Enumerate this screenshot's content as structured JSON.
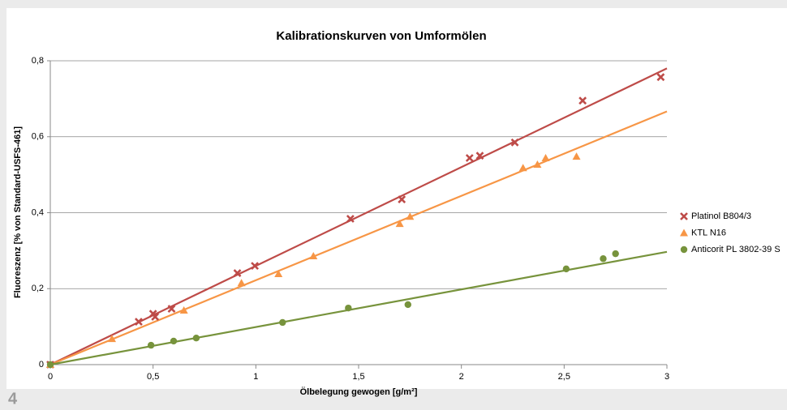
{
  "chart_data": {
    "type": "scatter",
    "title": "Kalibrationskurven von Umformölen",
    "xlabel": "Ölbelegung gewogen [g/m²]",
    "ylabel": "Fluoreszenz [% von Standard-USFS-461]",
    "xlim": [
      0,
      3
    ],
    "ylim": [
      0,
      0.8
    ],
    "xticks": [
      0,
      {
        "value": 0.5,
        "label": "0,5"
      },
      1,
      {
        "value": 1.5,
        "label": "1,5"
      },
      2,
      {
        "value": 2.5,
        "label": "2,5"
      },
      3
    ],
    "yticks": [
      0,
      {
        "value": 0.2,
        "label": "0,2"
      },
      {
        "value": 0.4,
        "label": "0,4"
      },
      {
        "value": 0.6,
        "label": "0,6"
      },
      {
        "value": 0.8,
        "label": "0,8"
      }
    ],
    "grid": true,
    "legend": "right",
    "series": [
      {
        "name": "Platinol B804/3",
        "color": "#be4b48",
        "marker": "x",
        "trendline_slope": 0.26,
        "x": [
          0,
          0.43,
          0.5,
          0.51,
          0.59,
          0.91,
          0.995,
          1.46,
          1.71,
          2.04,
          2.09,
          2.26,
          2.59,
          2.97
        ],
        "values": [
          0,
          0.113,
          0.134,
          0.126,
          0.147,
          0.241,
          0.26,
          0.384,
          0.435,
          0.544,
          0.55,
          0.585,
          0.695,
          0.757
        ]
      },
      {
        "name": "KTL N16",
        "color": "#f79646",
        "marker": "triangle",
        "trendline_slope": 0.2222,
        "x": [
          0,
          0.3,
          0.65,
          0.93,
          1.11,
          1.28,
          1.7,
          1.75,
          2.3,
          2.37,
          2.41,
          2.56
        ],
        "values": [
          0,
          0.068,
          0.143,
          0.215,
          0.239,
          0.286,
          0.371,
          0.39,
          0.518,
          0.527,
          0.544,
          0.548
        ]
      },
      {
        "name": "Anticorit PL 3802-39 S",
        "color": "#77933c",
        "marker": "circle",
        "trendline_slope": 0.099,
        "x": [
          0,
          0.49,
          0.6,
          0.71,
          1.13,
          1.45,
          1.74,
          2.51,
          2.69,
          2.75
        ],
        "values": [
          0,
          0.051,
          0.062,
          0.07,
          0.111,
          0.149,
          0.158,
          0.252,
          0.279,
          0.292
        ]
      }
    ]
  },
  "page_number": "4"
}
